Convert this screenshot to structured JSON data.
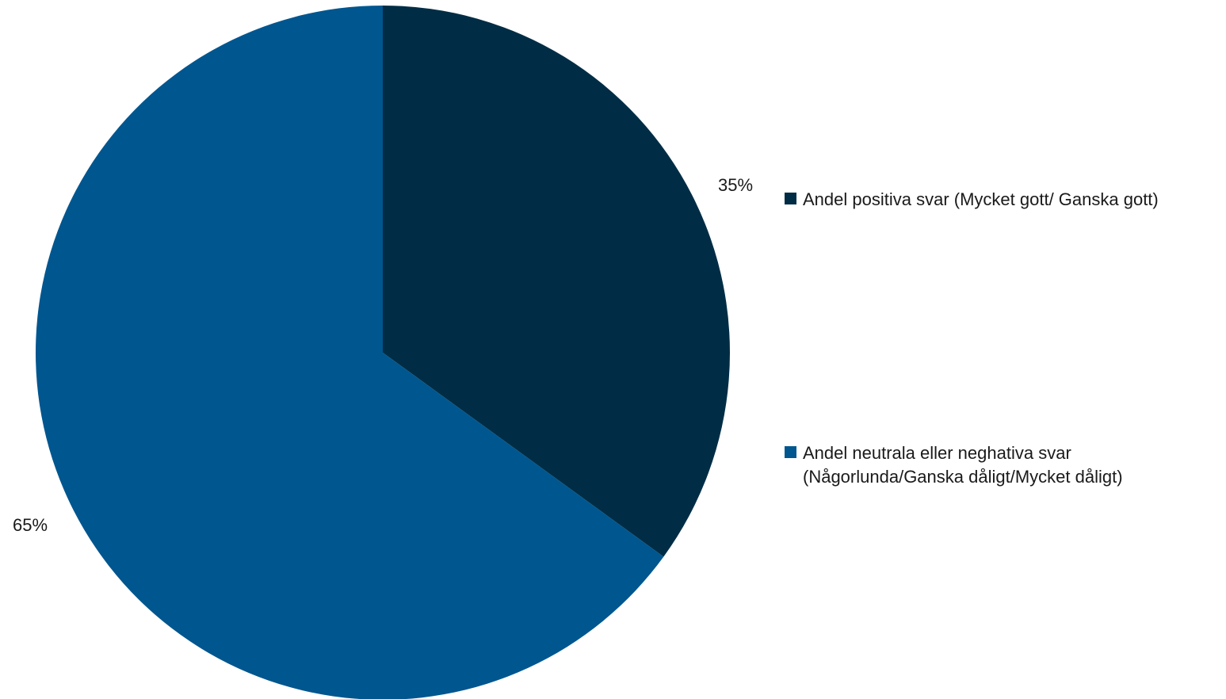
{
  "chart_data": {
    "type": "pie",
    "title": "",
    "start_angle_deg": 0,
    "direction": "clockwise",
    "legend_position": "right",
    "slices": [
      {
        "legend_lines": [
          "Andel positiva svar (Mycket gott/ Ganska gott)"
        ],
        "value": 35,
        "label": "35%",
        "color": "#002d45"
      },
      {
        "legend_lines": [
          "Andel neutrala eller neghativa svar",
          "(Någorlunda/Ganska dåligt/Mycket dåligt)"
        ],
        "value": 65,
        "label": "65%",
        "color": "#00568f"
      }
    ]
  }
}
